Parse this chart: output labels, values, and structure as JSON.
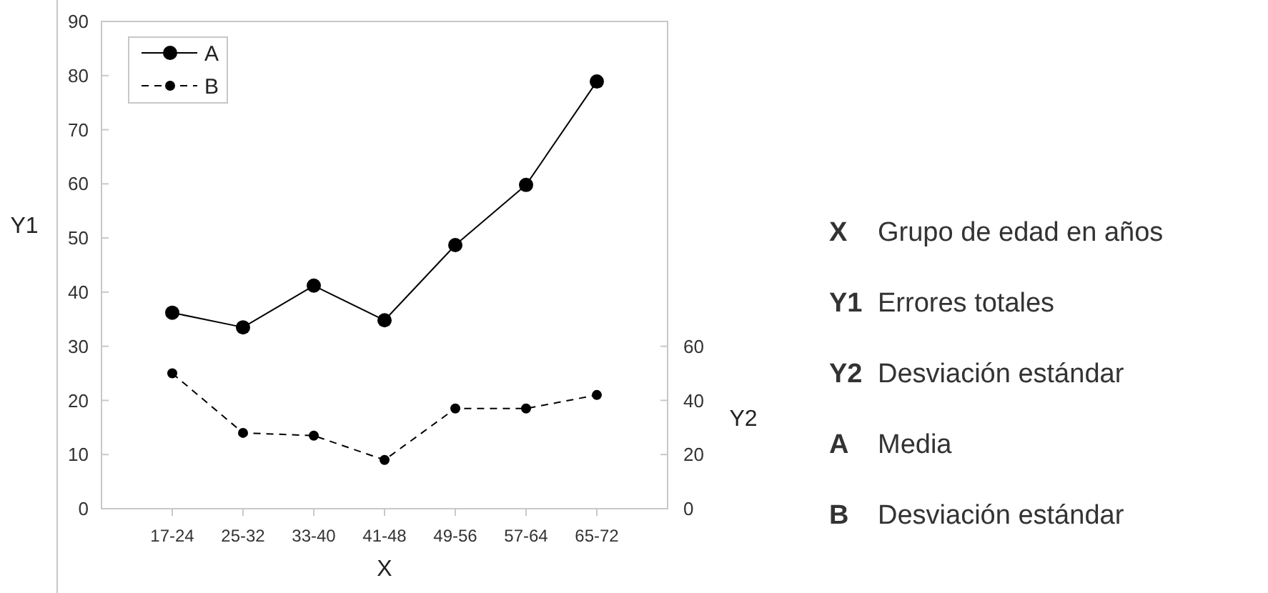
{
  "chart_data": {
    "type": "line",
    "xlabel": "X",
    "ylabel": "Y1",
    "y2label": "Y2",
    "categories": [
      "17-24",
      "25-32",
      "33-40",
      "41-48",
      "49-56",
      "57-64",
      "65-72"
    ],
    "series": [
      {
        "name": "A",
        "color": "#000000",
        "line_style": "solid",
        "values": [
          36.2,
          33.5,
          41.2,
          34.8,
          48.7,
          59.8,
          78.9
        ]
      },
      {
        "name": "B",
        "color": "#000000",
        "line_style": "dashed",
        "axis": "y2",
        "values": [
          50,
          28,
          27,
          18,
          37,
          37,
          42
        ]
      }
    ],
    "ylim": [
      0,
      90
    ],
    "yticks": [
      0,
      10,
      20,
      30,
      40,
      50,
      60,
      70,
      80,
      90
    ],
    "y2lim": [
      0,
      180
    ],
    "y2ticks": [
      0,
      20,
      40,
      60
    ],
    "marker": "circle",
    "legend": "top left",
    "grid": false,
    "annotations": [
      "X Grupo de edad en años",
      "Y1 Errores totales",
      "Y2 Desviación estándar",
      "A Media",
      "B Desviación estándar"
    ]
  }
}
